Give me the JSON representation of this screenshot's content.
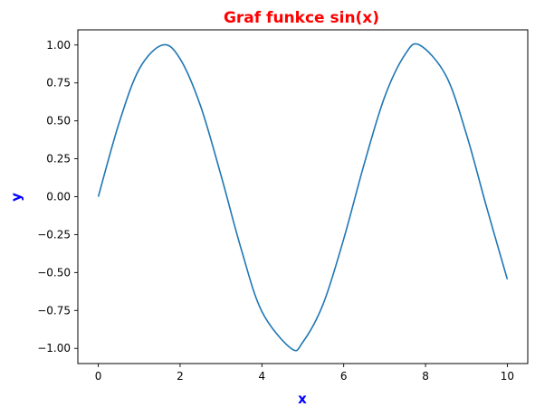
{
  "chart_data": {
    "type": "line",
    "title": "Graf funkce sin(x)",
    "xlabel": "x",
    "ylabel": "y",
    "xlim": [
      -0.5,
      10.5
    ],
    "ylim": [
      -1.1,
      1.1
    ],
    "x_ticks": [
      0,
      2,
      4,
      6,
      8,
      10
    ],
    "x_tick_labels": [
      "0",
      "2",
      "4",
      "6",
      "8",
      "10"
    ],
    "y_ticks": [
      1.0,
      0.75,
      0.5,
      0.25,
      0.0,
      -0.25,
      -0.5,
      -0.75,
      -1.0
    ],
    "y_tick_labels": [
      "1.00",
      "0.75",
      "0.50",
      "0.25",
      "0.00",
      "−0.25",
      "−0.50",
      "−0.75",
      "−1.00"
    ],
    "grid": false,
    "series": [
      {
        "x": [
          0,
          0.5,
          1,
          1.5708,
          2,
          2.5,
          3,
          3.5,
          4,
          4.7124,
          5,
          5.5,
          6,
          6.5,
          7,
          7.5,
          7.854,
          8.5,
          9,
          9.5,
          10
        ],
        "values": [
          0,
          0.479,
          0.841,
          1.0,
          0.909,
          0.598,
          0.141,
          -0.351,
          -0.757,
          -1.0,
          -0.959,
          -0.706,
          -0.279,
          0.215,
          0.657,
          0.938,
          1.0,
          0.798,
          0.412,
          -0.075,
          -0.544
        ],
        "color": "#1f77b4"
      }
    ],
    "colors": {
      "title": "#ff0000",
      "axis_labels": "#0000ff",
      "line": "#1f77b4"
    }
  }
}
